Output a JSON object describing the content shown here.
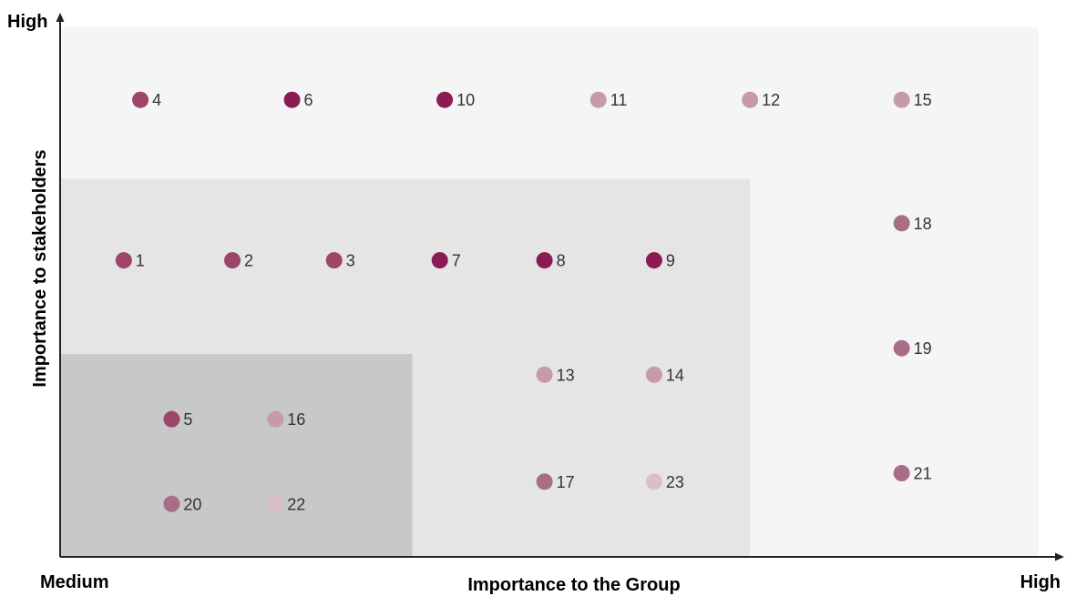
{
  "chart_data": {
    "type": "scatter",
    "title": "",
    "xlabel": "Importance to the Group",
    "ylabel": "Importance to stakeholders",
    "x_min_label": "Medium",
    "x_max_label": "High",
    "y_max_label": "High",
    "xlim": [
      0,
      10
    ],
    "ylim": [
      0,
      10
    ],
    "grid": false,
    "legend": false,
    "zones": [
      {
        "name": "tier-3",
        "x": [
          0,
          10
        ],
        "y": [
          0,
          10
        ],
        "color": "#f5f5f5"
      },
      {
        "name": "tier-2",
        "x": [
          0,
          7.05
        ],
        "y": [
          0,
          7.14
        ],
        "color": "#e5e5e5"
      },
      {
        "name": "tier-1",
        "x": [
          0,
          3.6
        ],
        "y": [
          0,
          3.83
        ],
        "color": "#c8c8c8"
      }
    ],
    "colors": {
      "dark": "#8c1b55",
      "medium": "#9c4568",
      "mauve": "#a86e87",
      "light": "#c79aaa",
      "pale": "#d8bfc9",
      "axis": "#222222"
    },
    "points": [
      {
        "label": "1",
        "x": 0.65,
        "y": 5.6,
        "shade": "medium"
      },
      {
        "label": "2",
        "x": 1.76,
        "y": 5.6,
        "shade": "medium"
      },
      {
        "label": "3",
        "x": 2.8,
        "y": 5.6,
        "shade": "medium"
      },
      {
        "label": "4",
        "x": 0.82,
        "y": 8.63,
        "shade": "medium"
      },
      {
        "label": "5",
        "x": 1.14,
        "y": 2.6,
        "shade": "medium"
      },
      {
        "label": "6",
        "x": 2.37,
        "y": 8.63,
        "shade": "dark"
      },
      {
        "label": "7",
        "x": 3.88,
        "y": 5.6,
        "shade": "dark"
      },
      {
        "label": "8",
        "x": 4.95,
        "y": 5.6,
        "shade": "dark"
      },
      {
        "label": "9",
        "x": 6.07,
        "y": 5.6,
        "shade": "dark"
      },
      {
        "label": "10",
        "x": 3.93,
        "y": 8.63,
        "shade": "dark"
      },
      {
        "label": "11",
        "x": 5.5,
        "y": 8.63,
        "shade": "light"
      },
      {
        "label": "12",
        "x": 7.05,
        "y": 8.63,
        "shade": "light"
      },
      {
        "label": "13",
        "x": 4.95,
        "y": 3.44,
        "shade": "light"
      },
      {
        "label": "14",
        "x": 6.07,
        "y": 3.44,
        "shade": "light"
      },
      {
        "label": "15",
        "x": 8.6,
        "y": 8.63,
        "shade": "light"
      },
      {
        "label": "16",
        "x": 2.2,
        "y": 2.6,
        "shade": "light"
      },
      {
        "label": "17",
        "x": 4.95,
        "y": 1.42,
        "shade": "mauve"
      },
      {
        "label": "18",
        "x": 8.6,
        "y": 6.3,
        "shade": "mauve"
      },
      {
        "label": "19",
        "x": 8.6,
        "y": 3.94,
        "shade": "mauve"
      },
      {
        "label": "20",
        "x": 1.14,
        "y": 1.0,
        "shade": "mauve"
      },
      {
        "label": "21",
        "x": 8.6,
        "y": 1.58,
        "shade": "mauve"
      },
      {
        "label": "22",
        "x": 2.2,
        "y": 1.0,
        "shade": "pale"
      },
      {
        "label": "23",
        "x": 6.07,
        "y": 1.42,
        "shade": "pale"
      }
    ]
  }
}
